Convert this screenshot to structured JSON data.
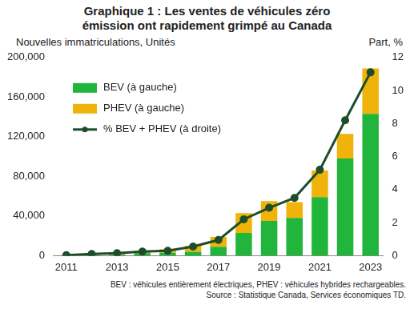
{
  "chart_data": {
    "type": "bar",
    "title": [
      "Graphique 1 : Les ventes de véhicules zéro",
      "émission ont rapidement grimpé au Canada"
    ],
    "y_label": "Nouvelles immatriculations, Unités",
    "y2_label": "Part, %",
    "notes": [
      "BEV : véhicules entièrement électriques, PHEV : véhicules hybrides rechargeables.",
      "Source : Statistique Canada, Services économiques TD."
    ],
    "categories": [
      "2011",
      null,
      "2013",
      null,
      "2015",
      null,
      "2017",
      null,
      "2019",
      null,
      "2021",
      null,
      "2023"
    ],
    "stacked": true,
    "grid": false,
    "legend": "upper left",
    "series": [
      {
        "name": "BEV (à gauche)",
        "type": "bar",
        "color": "#22b53c",
        "values": [
          200,
          500,
          1000,
          2500,
          3000,
          4000,
          9000,
          23000,
          35000,
          38000,
          59000,
          98000,
          143000
        ]
      },
      {
        "name": "PHEV (à gauche)",
        "type": "bar",
        "color": "#f0b30a",
        "values": [
          300,
          1500,
          1500,
          2500,
          3500,
          6000,
          10000,
          20000,
          20000,
          16000,
          27000,
          25000,
          46000
        ]
      },
      {
        "name": "% BEV + PHEV (à droite)",
        "type": "line",
        "axis": "y2",
        "color": "#1e4d2b",
        "marker": "circle",
        "line_style": "solid",
        "values": [
          0.03,
          0.1,
          0.15,
          0.25,
          0.3,
          0.55,
          0.95,
          2.2,
          2.9,
          3.5,
          5.2,
          8.2,
          11.1
        ]
      }
    ],
    "ylim": [
      0,
      200000
    ],
    "yticks": [
      0,
      {
        "value": 40000,
        "label": "40,000"
      },
      {
        "value": 80000,
        "label": "80,000"
      },
      {
        "value": 120000,
        "label": "120,000"
      },
      {
        "value": 160000,
        "label": "160,000"
      },
      {
        "value": 200000,
        "label": "200,000"
      }
    ],
    "y2lim": [
      0,
      12
    ],
    "y2ticks": [
      0,
      2,
      4,
      6,
      8,
      10,
      12
    ]
  }
}
